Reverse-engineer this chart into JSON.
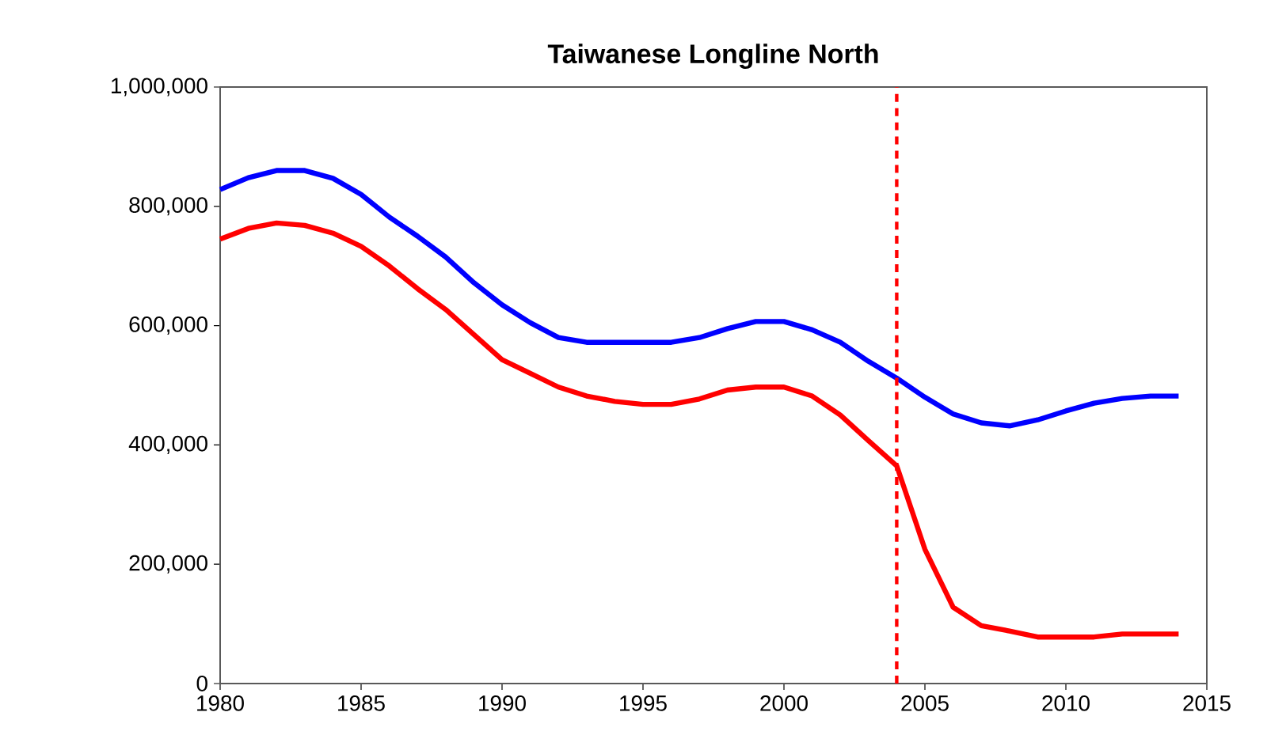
{
  "chart_data": {
    "type": "line",
    "title": "Taiwanese Longline North",
    "x": [
      1980,
      1981,
      1982,
      1983,
      1984,
      1985,
      1986,
      1987,
      1988,
      1989,
      1990,
      1991,
      1992,
      1993,
      1994,
      1995,
      1996,
      1997,
      1998,
      1999,
      2000,
      2001,
      2002,
      2003,
      2004,
      2005,
      2006,
      2007,
      2008,
      2009,
      2010,
      2011,
      2012,
      2013,
      2014
    ],
    "series": [
      {
        "color": "#0000ff",
        "values": [
          828000,
          848000,
          860000,
          860000,
          847000,
          820000,
          782000,
          750000,
          715000,
          672000,
          635000,
          605000,
          580000,
          572000,
          572000,
          572000,
          572000,
          580000,
          595000,
          607000,
          607000,
          593000,
          572000,
          540000,
          512000,
          480000,
          452000,
          437000,
          432000,
          442000,
          457000,
          470000,
          478000,
          482000,
          482000
        ]
      },
      {
        "color": "#ff0000",
        "values": [
          745000,
          763000,
          772000,
          768000,
          755000,
          733000,
          700000,
          662000,
          627000,
          585000,
          543000,
          520000,
          497000,
          482000,
          473000,
          468000,
          468000,
          477000,
          492000,
          497000,
          497000,
          482000,
          450000,
          407000,
          365000,
          225000,
          128000,
          97000,
          88000,
          78000,
          78000,
          78000,
          83000,
          83000,
          83000
        ]
      }
    ],
    "xlim": [
      1980,
      2015
    ],
    "xticks": [
      1980,
      1985,
      1990,
      1995,
      2000,
      2005,
      2010,
      2015
    ],
    "ylim": [
      0,
      1000000
    ],
    "yticks": [
      {
        "value": 0,
        "label": "0"
      },
      {
        "value": 200000,
        "label": "200,000"
      },
      {
        "value": 400000,
        "label": "400,000"
      },
      {
        "value": 600000,
        "label": "600,000"
      },
      {
        "value": 800000,
        "label": "800,000"
      },
      {
        "value": 1000000,
        "label": "1,000,000"
      }
    ],
    "ref_lines": [
      {
        "axis": "x",
        "value": 2004,
        "color": "#ff0000",
        "line_style": "dashed"
      }
    ],
    "grid": false,
    "marker": "none",
    "line_style": "solid"
  }
}
